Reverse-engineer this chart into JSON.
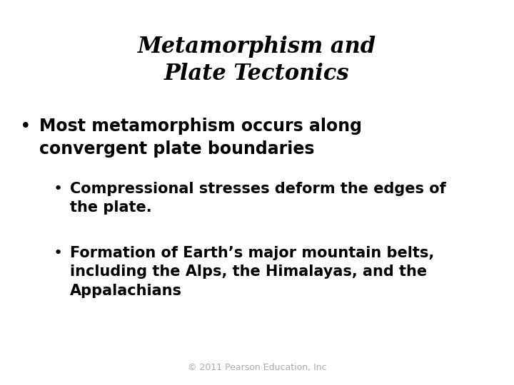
{
  "title_line1": "Metamorphism and",
  "title_line2": "Plate Tectonics",
  "bullet1_text": "Most metamorphism occurs along\nconvergent plate boundaries",
  "sub_bullet1_text": "Compressional stresses deform the edges of\nthe plate.",
  "sub_bullet2_text": "Formation of Earth’s major mountain belts,\nincluding the Alps, the Himalayas, and the\nAppalachians",
  "footer": "© 2011 Pearson Education, Inc",
  "bg_color": "#ffffff",
  "text_color": "#000000",
  "footer_color": "#aaaaaa",
  "title_fontsize": 22,
  "bullet_fontsize": 17,
  "sub_bullet_fontsize": 15,
  "footer_fontsize": 9
}
